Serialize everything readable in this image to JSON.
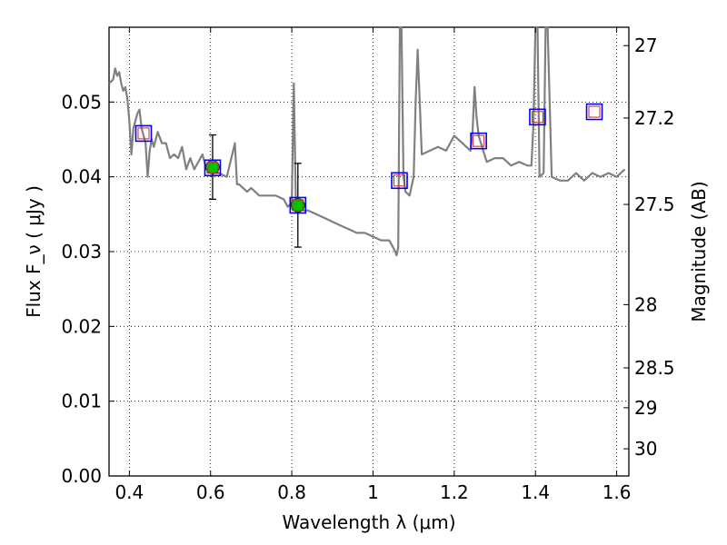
{
  "chart_data": {
    "type": "line",
    "xlabel": "Wavelength  λ (μm)",
    "ylabel": "Flux  F_ν  ( μJy )",
    "y2label": "Magnitude (AB)",
    "xlim": [
      0.35,
      1.63
    ],
    "ylim": [
      0.0,
      0.06
    ],
    "grid": true,
    "grid_style": "dotted",
    "x_ticks": [
      0.4,
      0.6,
      0.8,
      1.0,
      1.2,
      1.4,
      1.6
    ],
    "x_tick_labels": [
      "0.4",
      "0.6",
      "0.8",
      "1",
      "1.2",
      "1.4",
      "1.6"
    ],
    "y_ticks": [
      0.0,
      0.01,
      0.02,
      0.03,
      0.04,
      0.05
    ],
    "y_tick_labels": [
      "0.00",
      "0.01",
      "0.02",
      "0.03",
      "0.04",
      "0.05"
    ],
    "y2_ticks": [
      {
        "mag": 27,
        "label": "27"
      },
      {
        "mag": 27.2,
        "label": "27.2"
      },
      {
        "mag": 27.5,
        "label": "27.5"
      },
      {
        "mag": 28,
        "label": "28"
      },
      {
        "mag": 28.5,
        "label": "28.5"
      },
      {
        "mag": 29,
        "label": "29"
      },
      {
        "mag": 30,
        "label": "30"
      }
    ],
    "colors": {
      "spectrum": "#808080",
      "detection_fill": "#00c000",
      "model_box": "#0000ff",
      "model_box_inner": "#dd2222",
      "errorbar": "#000000"
    },
    "series": [
      {
        "kind": "spectrum",
        "x": [
          0.35,
          0.36,
          0.365,
          0.37,
          0.375,
          0.38,
          0.385,
          0.39,
          0.395,
          0.4,
          0.405,
          0.41,
          0.42,
          0.425,
          0.43,
          0.44,
          0.445,
          0.45,
          0.455,
          0.46,
          0.47,
          0.48,
          0.49,
          0.5,
          0.51,
          0.52,
          0.53,
          0.54,
          0.55,
          0.56,
          0.57,
          0.58,
          0.59,
          0.6,
          0.62,
          0.64,
          0.66,
          0.665,
          0.67,
          0.69,
          0.7,
          0.72,
          0.74,
          0.76,
          0.78,
          0.79,
          0.8,
          0.805,
          0.81,
          0.815,
          0.82,
          0.83,
          0.84,
          0.86,
          0.88,
          0.9,
          0.92,
          0.94,
          0.96,
          0.98,
          1.0,
          1.02,
          1.04,
          1.05,
          1.055,
          1.058,
          1.062,
          1.066,
          1.07,
          1.075,
          1.08,
          1.09,
          1.1,
          1.105,
          1.11,
          1.115,
          1.12,
          1.14,
          1.16,
          1.18,
          1.2,
          1.22,
          1.24,
          1.245,
          1.25,
          1.255,
          1.26,
          1.28,
          1.3,
          1.32,
          1.34,
          1.36,
          1.38,
          1.39,
          1.395,
          1.4,
          1.405,
          1.41,
          1.42,
          1.425,
          1.43,
          1.44,
          1.46,
          1.48,
          1.5,
          1.52,
          1.54,
          1.56,
          1.58,
          1.6,
          1.62
        ],
        "y": [
          0.0525,
          0.053,
          0.0545,
          0.0535,
          0.054,
          0.0525,
          0.0515,
          0.052,
          0.0505,
          0.0475,
          0.043,
          0.0465,
          0.0485,
          0.049,
          0.0465,
          0.0445,
          0.04,
          0.0435,
          0.045,
          0.044,
          0.046,
          0.0445,
          0.0445,
          0.0425,
          0.043,
          0.0425,
          0.044,
          0.041,
          0.0425,
          0.041,
          0.042,
          0.043,
          0.041,
          0.0405,
          0.0405,
          0.04,
          0.0445,
          0.039,
          0.039,
          0.038,
          0.0385,
          0.0375,
          0.0375,
          0.0375,
          0.037,
          0.036,
          0.0365,
          0.0525,
          0.0365,
          0.0355,
          0.036,
          0.0355,
          0.0355,
          0.035,
          0.0345,
          0.034,
          0.0335,
          0.033,
          0.0325,
          0.0325,
          0.032,
          0.0315,
          0.0315,
          0.0305,
          0.03,
          0.0295,
          0.0305,
          0.06,
          0.06,
          0.04,
          0.038,
          0.0375,
          0.04,
          0.05,
          0.057,
          0.05,
          0.043,
          0.0435,
          0.044,
          0.0435,
          0.0455,
          0.0445,
          0.0435,
          0.046,
          0.052,
          0.048,
          0.0455,
          0.042,
          0.0425,
          0.0425,
          0.0415,
          0.042,
          0.0415,
          0.0415,
          0.047,
          0.06,
          0.06,
          0.04,
          0.0405,
          0.06,
          0.06,
          0.04,
          0.0395,
          0.0395,
          0.0405,
          0.0395,
          0.0405,
          0.04,
          0.0405,
          0.04,
          0.041
        ]
      },
      {
        "kind": "detections",
        "points": [
          {
            "x": 0.605,
            "y": 0.0413,
            "yerr_low": 0.037,
            "yerr_high": 0.0456
          },
          {
            "x": 0.815,
            "y": 0.0362,
            "yerr_low": 0.0306,
            "yerr_high": 0.0418
          }
        ]
      },
      {
        "kind": "model_photometry",
        "points": [
          {
            "x": 0.435,
            "y": 0.0458
          },
          {
            "x": 0.605,
            "y": 0.0412
          },
          {
            "x": 0.815,
            "y": 0.0362
          },
          {
            "x": 1.065,
            "y": 0.0395
          },
          {
            "x": 1.26,
            "y": 0.0448
          },
          {
            "x": 1.405,
            "y": 0.048
          },
          {
            "x": 1.545,
            "y": 0.0487
          }
        ]
      }
    ]
  }
}
